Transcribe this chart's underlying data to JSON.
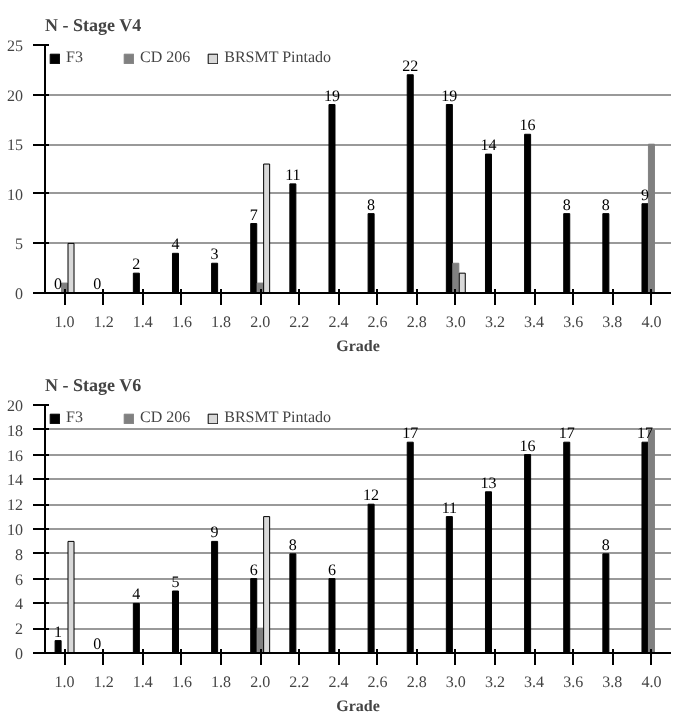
{
  "chart_data": [
    {
      "type": "bar",
      "title": "N - Stage V4",
      "xlabel": "Grade",
      "categories": [
        "1.0",
        "1.2",
        "1.4",
        "1.6",
        "1.8",
        "2.0",
        "2.2",
        "2.4",
        "2.6",
        "2.8",
        "3.0",
        "3.2",
        "3.4",
        "3.6",
        "3.8",
        "4.0"
      ],
      "series": [
        {
          "name": "F3",
          "color": "#000000",
          "values": [
            0,
            0,
            2,
            4,
            3,
            7,
            11,
            19,
            8,
            22,
            19,
            14,
            16,
            8,
            8,
            9
          ],
          "value_labels": [
            "0",
            "0",
            "2",
            "4",
            "3",
            "7",
            "11",
            "19",
            "8",
            "22",
            "19",
            "14",
            "16",
            "8",
            "8",
            "9"
          ]
        },
        {
          "name": "CD 206",
          "color": "#808080",
          "values": [
            1,
            null,
            null,
            null,
            null,
            1,
            null,
            null,
            null,
            null,
            3,
            null,
            null,
            null,
            null,
            15
          ]
        },
        {
          "name": "BRSMT Pintado",
          "color": "#d9d9d9",
          "values": [
            5,
            null,
            null,
            null,
            null,
            13,
            null,
            null,
            null,
            null,
            2,
            null,
            null,
            null,
            null,
            null
          ]
        }
      ],
      "ylim": [
        0,
        25
      ],
      "yticks": [
        0,
        5,
        10,
        15,
        20,
        25
      ],
      "grid": "y",
      "legend": "top left"
    },
    {
      "type": "bar",
      "title": "N - Stage V6",
      "xlabel": "Grade",
      "categories": [
        "1.0",
        "1.2",
        "1.4",
        "1.6",
        "1.8",
        "2.0",
        "2.2",
        "2.4",
        "2.6",
        "2.8",
        "3.0",
        "3.2",
        "3.4",
        "3.6",
        "3.8",
        "4.0"
      ],
      "series": [
        {
          "name": "F3",
          "color": "#000000",
          "values": [
            1,
            0,
            4,
            5,
            9,
            6,
            8,
            6,
            12,
            17,
            11,
            13,
            16,
            17,
            8,
            17
          ],
          "value_labels": [
            "1",
            "0",
            "4",
            "5",
            "9",
            "6",
            "8",
            "6",
            "12",
            "17",
            "11",
            "13",
            "16",
            "17",
            "8",
            "17"
          ]
        },
        {
          "name": "CD 206",
          "color": "#808080",
          "values": [
            null,
            null,
            null,
            null,
            null,
            2,
            null,
            null,
            null,
            null,
            null,
            null,
            null,
            null,
            null,
            18
          ]
        },
        {
          "name": "BRSMT Pintado",
          "color": "#d9d9d9",
          "values": [
            9,
            null,
            null,
            null,
            null,
            11,
            null,
            null,
            null,
            null,
            null,
            null,
            null,
            null,
            null,
            null
          ]
        }
      ],
      "ylim": [
        0,
        20
      ],
      "yticks": [
        0,
        2,
        4,
        6,
        8,
        10,
        12,
        14,
        16,
        18,
        20
      ],
      "grid": "y",
      "legend": "top left"
    }
  ]
}
